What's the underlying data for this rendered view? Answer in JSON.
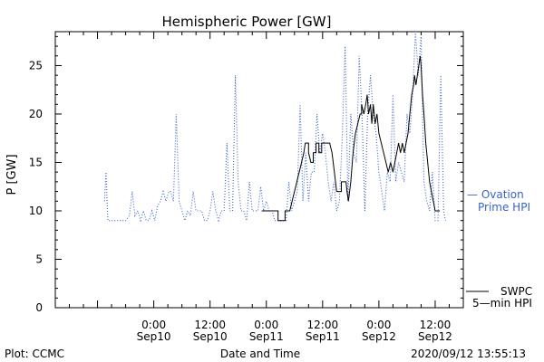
{
  "chart_data": {
    "type": "line",
    "title": "Hemispheric Power [GW]",
    "ylabel": "P [GW]",
    "xlabel": "Date and Time",
    "ylim": [
      0,
      28.5
    ],
    "xlim": [
      -21,
      66
    ],
    "x_unit": "hours since 2020-09-10 00:00",
    "yticks": [
      0,
      5,
      10,
      15,
      20,
      25
    ],
    "xticks": [
      {
        "x": 0,
        "time": "0:00",
        "date": "Sep10"
      },
      {
        "x": 12,
        "time": "12:00",
        "date": "Sep10"
      },
      {
        "x": 24,
        "time": "0:00",
        "date": "Sep11"
      },
      {
        "x": 36,
        "time": "12:00",
        "date": "Sep11"
      },
      {
        "x": 48,
        "time": "0:00",
        "date": "Sep12"
      },
      {
        "x": 60,
        "time": "12:00",
        "date": "Sep12"
      }
    ],
    "series": [
      {
        "name": "Ovation Prime HPI",
        "label_lines": [
          "— Ovation",
          "Prime HPI"
        ],
        "color": "#3a62c8",
        "style": "dotted",
        "points": [
          [
            -10.5,
            11
          ],
          [
            -10.2,
            14
          ],
          [
            -9.8,
            9
          ],
          [
            -8,
            9
          ],
          [
            -6,
            9
          ],
          [
            -5.2,
            9.5
          ],
          [
            -4.6,
            12
          ],
          [
            -4,
            9.5
          ],
          [
            -3.4,
            10
          ],
          [
            -2.8,
            9
          ],
          [
            -2.2,
            10
          ],
          [
            -1.6,
            9
          ],
          [
            -1,
            9
          ],
          [
            -0.4,
            10
          ],
          [
            0.2,
            9
          ],
          [
            0.8,
            10.5
          ],
          [
            1.4,
            11
          ],
          [
            2,
            12
          ],
          [
            2.6,
            11
          ],
          [
            3.2,
            12
          ],
          [
            3.6,
            12
          ],
          [
            4.2,
            11
          ],
          [
            4.8,
            20
          ],
          [
            5.4,
            11
          ],
          [
            6,
            10
          ],
          [
            6.6,
            9
          ],
          [
            7.2,
            10
          ],
          [
            7.8,
            9.5
          ],
          [
            8.4,
            12
          ],
          [
            9,
            10
          ],
          [
            9.6,
            10
          ],
          [
            10.2,
            10
          ],
          [
            10.8,
            9
          ],
          [
            11.4,
            9
          ],
          [
            12,
            10
          ],
          [
            12.6,
            12
          ],
          [
            13.2,
            10
          ],
          [
            13.8,
            9
          ],
          [
            14.4,
            10
          ],
          [
            15,
            10
          ],
          [
            15.6,
            17
          ],
          [
            16.2,
            10
          ],
          [
            16.8,
            10
          ],
          [
            17.4,
            24
          ],
          [
            18,
            13
          ],
          [
            18.6,
            10
          ],
          [
            19.2,
            10
          ],
          [
            19.8,
            9
          ],
          [
            20.4,
            13
          ],
          [
            21,
            10
          ],
          [
            21.6,
            10
          ],
          [
            22.2,
            10
          ],
          [
            22.8,
            12.5
          ],
          [
            23.4,
            10
          ],
          [
            24,
            11
          ],
          [
            24.6,
            10
          ],
          [
            25.2,
            10
          ],
          [
            25.8,
            9
          ],
          [
            26.4,
            9
          ],
          [
            27,
            9
          ],
          [
            27.6,
            9
          ],
          [
            28.2,
            9
          ],
          [
            28.8,
            13
          ],
          [
            29.4,
            10
          ],
          [
            30,
            11
          ],
          [
            30.6,
            12
          ],
          [
            31.2,
            21
          ],
          [
            31.8,
            11
          ],
          [
            32.4,
            16
          ],
          [
            33,
            11
          ],
          [
            33.6,
            14
          ],
          [
            34.2,
            14
          ],
          [
            34.8,
            20
          ],
          [
            35.4,
            16
          ],
          [
            36,
            18
          ],
          [
            36.6,
            16
          ],
          [
            37.2,
            13
          ],
          [
            37.8,
            11
          ],
          [
            38.4,
            13
          ],
          [
            39,
            10
          ],
          [
            39.6,
            11
          ],
          [
            40.2,
            18
          ],
          [
            40.8,
            27
          ],
          [
            41.4,
            11
          ],
          [
            42,
            20
          ],
          [
            42.6,
            16
          ],
          [
            43.2,
            15
          ],
          [
            43.8,
            26
          ],
          [
            44.4,
            20
          ],
          [
            45,
            10
          ],
          [
            45.6,
            20
          ],
          [
            46.2,
            24
          ],
          [
            46.8,
            20
          ],
          [
            47.4,
            18
          ],
          [
            48,
            14
          ],
          [
            48.6,
            12
          ],
          [
            49.2,
            10
          ],
          [
            49.8,
            14
          ],
          [
            50.4,
            13
          ],
          [
            51,
            22
          ],
          [
            51.6,
            13
          ],
          [
            52.2,
            15
          ],
          [
            52.8,
            14
          ],
          [
            53.4,
            13
          ],
          [
            54,
            20
          ],
          [
            54.6,
            18
          ],
          [
            55.2,
            22
          ],
          [
            55.8,
            28.5
          ],
          [
            56.4,
            24
          ],
          [
            57,
            28
          ],
          [
            57.6,
            13
          ],
          [
            58.2,
            11
          ],
          [
            58.8,
            10
          ],
          [
            59.4,
            14
          ],
          [
            60,
            9
          ],
          [
            60.6,
            9
          ],
          [
            61.2,
            24
          ],
          [
            61.8,
            10
          ],
          [
            62.2,
            9
          ]
        ]
      },
      {
        "name": "SWPC 5-min HPI",
        "label_lines": [
          "SWPC",
          "5—min HPI"
        ],
        "color": "#000000",
        "style": "solid",
        "points": [
          [
            23,
            10
          ],
          [
            26.5,
            10
          ],
          [
            26.5,
            9
          ],
          [
            28,
            9
          ],
          [
            28,
            10
          ],
          [
            29,
            10
          ],
          [
            29.5,
            11
          ],
          [
            30,
            12
          ],
          [
            30.5,
            13
          ],
          [
            31,
            14
          ],
          [
            31.5,
            15
          ],
          [
            32,
            16
          ],
          [
            32.3,
            17
          ],
          [
            33,
            17
          ],
          [
            33,
            16
          ],
          [
            33.5,
            15
          ],
          [
            34,
            15
          ],
          [
            34,
            16
          ],
          [
            34.6,
            16
          ],
          [
            34.6,
            17
          ],
          [
            35.2,
            17
          ],
          [
            35.2,
            16
          ],
          [
            35.8,
            16
          ],
          [
            35.8,
            17
          ],
          [
            37.5,
            17
          ],
          [
            38,
            16
          ],
          [
            38.5,
            14
          ],
          [
            39,
            12
          ],
          [
            40,
            12
          ],
          [
            40,
            13
          ],
          [
            41,
            13
          ],
          [
            41.2,
            12
          ],
          [
            41.5,
            11
          ],
          [
            42,
            13
          ],
          [
            42.5,
            16
          ],
          [
            43,
            18
          ],
          [
            43.5,
            19
          ],
          [
            44,
            20
          ],
          [
            44.3,
            20
          ],
          [
            44.3,
            21
          ],
          [
            44.8,
            20
          ],
          [
            45.2,
            21
          ],
          [
            45.5,
            22
          ],
          [
            45.8,
            20
          ],
          [
            46.2,
            21
          ],
          [
            46.5,
            19
          ],
          [
            46.8,
            21
          ],
          [
            47.2,
            19
          ],
          [
            47.6,
            20
          ],
          [
            48,
            18
          ],
          [
            48.5,
            17
          ],
          [
            49,
            16
          ],
          [
            49.5,
            15
          ],
          [
            50,
            14
          ],
          [
            50.5,
            15
          ],
          [
            51,
            14
          ],
          [
            51.4,
            15
          ],
          [
            51.8,
            16
          ],
          [
            52.2,
            17
          ],
          [
            52.6,
            16
          ],
          [
            53,
            17
          ],
          [
            53.4,
            16
          ],
          [
            53.8,
            17
          ],
          [
            54.2,
            18
          ],
          [
            54.6,
            20
          ],
          [
            55,
            22
          ],
          [
            55.4,
            23
          ],
          [
            55.6,
            24
          ],
          [
            55.9,
            23
          ],
          [
            56.2,
            24
          ],
          [
            56.5,
            25
          ],
          [
            56.8,
            26
          ],
          [
            57,
            25
          ],
          [
            57.3,
            22
          ],
          [
            57.6,
            20
          ],
          [
            58,
            17
          ],
          [
            58.4,
            15
          ],
          [
            58.8,
            13
          ],
          [
            59.2,
            12
          ],
          [
            59.6,
            11
          ],
          [
            60,
            10
          ],
          [
            61,
            10
          ]
        ]
      }
    ]
  },
  "footer": {
    "plot_credit": "Plot: CCMC",
    "timestamp": "2020/09/12 13:55:13"
  },
  "colors": {
    "axis": "#000000",
    "ovation": "#3a62c8",
    "swpc": "#000000"
  }
}
